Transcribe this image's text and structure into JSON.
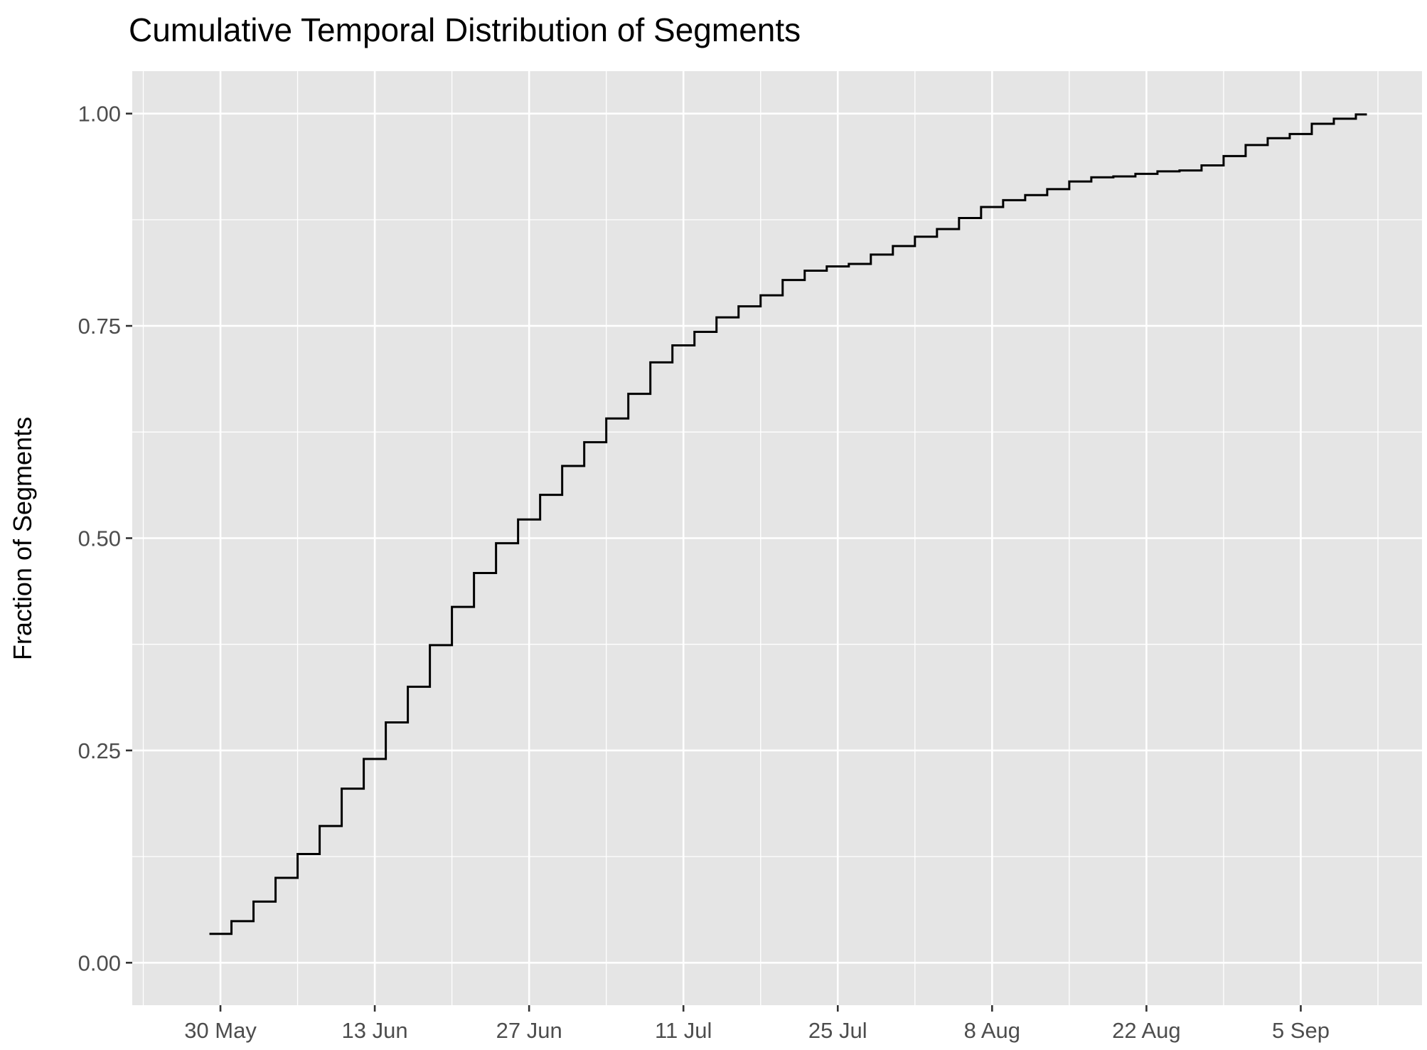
{
  "chart_data": {
    "type": "line",
    "step": true,
    "title": "Cumulative Temporal Distribution of Segments",
    "xlabel": "",
    "ylabel": "Fraction of Segments",
    "x_ticks": [
      {
        "date": "2024-05-30",
        "label": "30 May"
      },
      {
        "date": "2024-06-13",
        "label": "13 Jun"
      },
      {
        "date": "2024-06-27",
        "label": "27 Jun"
      },
      {
        "date": "2024-07-11",
        "label": "11 Jul"
      },
      {
        "date": "2024-07-25",
        "label": "25 Jul"
      },
      {
        "date": "2024-08-08",
        "label": "8 Aug"
      },
      {
        "date": "2024-08-22",
        "label": "22 Aug"
      },
      {
        "date": "2024-09-05",
        "label": "5 Sep"
      }
    ],
    "y_ticks": [
      {
        "value": 0,
        "label": "0.00"
      },
      {
        "value": 0.25,
        "label": "0.25"
      },
      {
        "value": 0.5,
        "label": "0.50"
      },
      {
        "value": 0.75,
        "label": "0.75"
      },
      {
        "value": 1,
        "label": "1.00"
      }
    ],
    "xlim": [
      "2024-05-22",
      "2024-09-16"
    ],
    "ylim": [
      -0.05,
      1.05
    ],
    "grid": true,
    "panel_background": "#e5e5e5",
    "grid_color": "#ffffff",
    "line_color": "#000000",
    "x": [
      "2024-05-29",
      "2024-05-31",
      "2024-06-02",
      "2024-06-04",
      "2024-06-06",
      "2024-06-08",
      "2024-06-10",
      "2024-06-12",
      "2024-06-14",
      "2024-06-16",
      "2024-06-18",
      "2024-06-20",
      "2024-06-22",
      "2024-06-24",
      "2024-06-26",
      "2024-06-28",
      "2024-06-30",
      "2024-07-02",
      "2024-07-04",
      "2024-07-06",
      "2024-07-08",
      "2024-07-10",
      "2024-07-12",
      "2024-07-14",
      "2024-07-16",
      "2024-07-18",
      "2024-07-20",
      "2024-07-22",
      "2024-07-24",
      "2024-07-26",
      "2024-07-28",
      "2024-07-30",
      "2024-08-01",
      "2024-08-03",
      "2024-08-05",
      "2024-08-07",
      "2024-08-09",
      "2024-08-11",
      "2024-08-13",
      "2024-08-15",
      "2024-08-17",
      "2024-08-19",
      "2024-08-21",
      "2024-08-23",
      "2024-08-25",
      "2024-08-27",
      "2024-08-29",
      "2024-08-31",
      "2024-09-02",
      "2024-09-04",
      "2024-09-06",
      "2024-09-08",
      "2024-09-10"
    ],
    "y": [
      0.034,
      0.049,
      0.072,
      0.1,
      0.128,
      0.161,
      0.205,
      0.24,
      0.283,
      0.325,
      0.374,
      0.419,
      0.459,
      0.494,
      0.522,
      0.551,
      0.585,
      0.613,
      0.641,
      0.67,
      0.707,
      0.727,
      0.743,
      0.76,
      0.773,
      0.786,
      0.804,
      0.815,
      0.82,
      0.823,
      0.834,
      0.844,
      0.855,
      0.864,
      0.877,
      0.89,
      0.898,
      0.904,
      0.911,
      0.92,
      0.925,
      0.926,
      0.929,
      0.932,
      0.933,
      0.939,
      0.95,
      0.963,
      0.971,
      0.976,
      0.988,
      0.994,
      0.999
    ]
  }
}
